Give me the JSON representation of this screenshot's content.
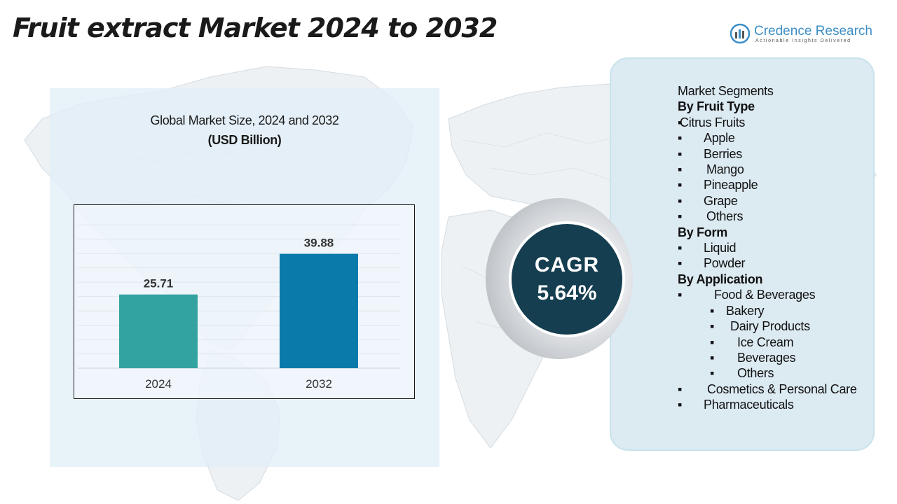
{
  "title": "Fruit extract Market 2024 to 2032",
  "logo": {
    "name": "Credence Research",
    "tagline": "Actionable Insights Delivered"
  },
  "chart_data": {
    "type": "bar",
    "title": "Global Market Size, 2024 and 2032",
    "subtitle": "(USD Billion)",
    "categories": [
      "2024",
      "2032"
    ],
    "values": [
      25.71,
      39.88
    ],
    "value_labels": [
      "25.71",
      "39.88"
    ],
    "colors": [
      "#33a3a1",
      "#0a7aab"
    ],
    "ylim": [
      0,
      52
    ],
    "grid": true,
    "xlabel": "",
    "ylabel": ""
  },
  "cagr": {
    "label": "CAGR",
    "value": "5.64%"
  },
  "segments": {
    "heading": "Market Segments",
    "items": [
      {
        "type": "header",
        "text": "By Fruit Type"
      },
      {
        "type": "bullet",
        "level": 1,
        "text": "Citrus Fruits",
        "indent": 3
      },
      {
        "type": "bullet",
        "level": 1,
        "text": "Apple",
        "indent": 37
      },
      {
        "type": "bullet",
        "level": 1,
        "text": "Berries",
        "indent": 37
      },
      {
        "type": "bullet",
        "level": 1,
        "text": "Mango",
        "indent": 41
      },
      {
        "type": "bullet",
        "level": 1,
        "text": "Pineapple",
        "indent": 37
      },
      {
        "type": "bullet",
        "level": 1,
        "text": "Grape",
        "indent": 37
      },
      {
        "type": "bullet",
        "level": 1,
        "text": "Others",
        "indent": 41
      },
      {
        "type": "header",
        "text": "By Form"
      },
      {
        "type": "bullet",
        "level": 1,
        "text": "Liquid",
        "indent": 37
      },
      {
        "type": "bullet",
        "level": 1,
        "text": "Powder",
        "indent": 37
      },
      {
        "type": "header",
        "text": "By Application"
      },
      {
        "type": "bullet",
        "level": 1,
        "text": "Food & Beverages",
        "indent": 52
      },
      {
        "type": "bullet",
        "level": 2,
        "text": "Bakery",
        "indent": 69
      },
      {
        "type": "bullet",
        "level": 2,
        "text": "Dairy Products",
        "indent": 75
      },
      {
        "type": "bullet",
        "level": 2,
        "text": "Ice Cream",
        "indent": 85
      },
      {
        "type": "bullet",
        "level": 2,
        "text": "Beverages",
        "indent": 85
      },
      {
        "type": "bullet",
        "level": 2,
        "text": "Others",
        "indent": 85
      },
      {
        "type": "bullet",
        "level": 1,
        "text": "Cosmetics & Personal Care",
        "indent": 42
      },
      {
        "type": "bullet",
        "level": 1,
        "text": "Pharmaceuticals",
        "indent": 37
      }
    ]
  }
}
